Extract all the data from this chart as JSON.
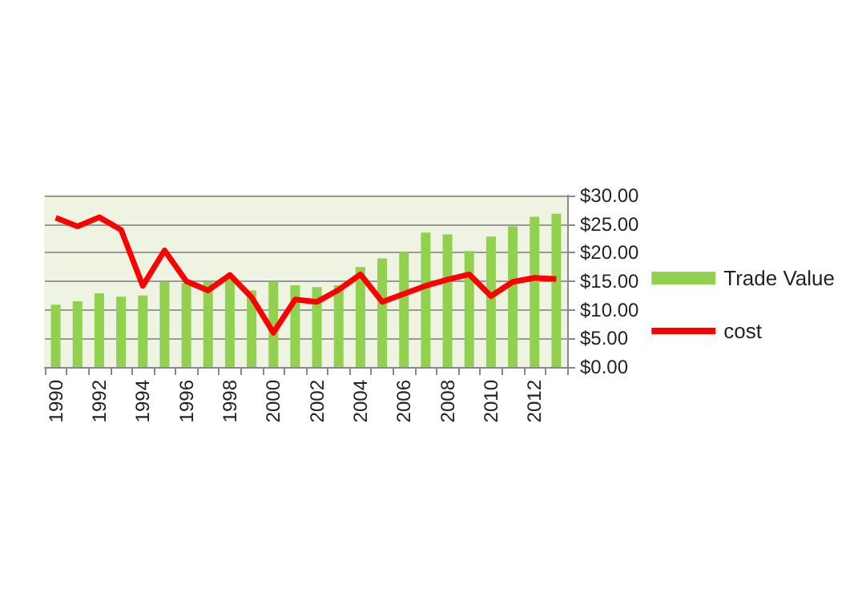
{
  "chart_data": {
    "type": "bar",
    "categories": [
      "1990",
      null,
      "1992",
      null,
      "1994",
      null,
      "1996",
      null,
      "1998",
      null,
      "2000",
      null,
      "2002",
      null,
      "2004",
      null,
      "2006",
      null,
      "2008",
      null,
      "2010",
      null,
      "2012",
      null
    ],
    "series": [
      {
        "name": "Trade Value",
        "color": "#92d050",
        "values": [
          10.9,
          11.5,
          12.9,
          12.3,
          12.5,
          14.9,
          14.7,
          14.9,
          15.3,
          13.4,
          14.9,
          14.3,
          14.0,
          14.3,
          17.5,
          19.0,
          20.1,
          23.5,
          23.2,
          20.3,
          22.8,
          24.6,
          26.3,
          26.8
        ]
      },
      {
        "name": "cost",
        "type": "line",
        "color": "#ff0000",
        "values": [
          26.1,
          24.6,
          26.2,
          24.0,
          14.2,
          20.4,
          15.0,
          13.4,
          16.1,
          12.2,
          6.0,
          11.8,
          11.4,
          13.5,
          16.2,
          11.4,
          12.8,
          14.2,
          15.3,
          16.2,
          12.4,
          14.9,
          15.6,
          15.4
        ]
      }
    ],
    "ylim": [
      0,
      30
    ],
    "yticks": [
      {
        "value": 0,
        "label": "$0.00"
      },
      {
        "value": 5,
        "label": "$5.00"
      },
      {
        "value": 10,
        "label": "$10.00"
      },
      {
        "value": 15,
        "label": "$15.00"
      },
      {
        "value": 20,
        "label": "$20.00"
      },
      {
        "value": 25,
        "label": "$25.00"
      },
      {
        "value": 30,
        "label": "$30.00"
      }
    ],
    "grid": true,
    "legend": "right",
    "marker": "none",
    "line_style": "solid"
  }
}
